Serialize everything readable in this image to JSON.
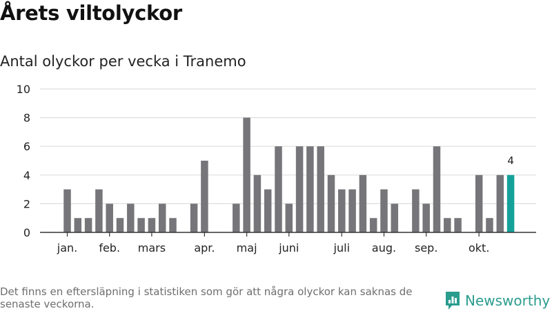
{
  "header": {
    "title": "Årets viltolyckor",
    "subtitle": "Antal olyckor per vecka i Tranemo"
  },
  "chart_data": {
    "type": "bar",
    "title": "Årets viltolyckor",
    "subtitle": "Antal olyckor per vecka i Tranemo",
    "xlabel": "",
    "ylabel": "",
    "ylim": [
      0,
      10
    ],
    "yticks": [
      0,
      2,
      4,
      6,
      8,
      10
    ],
    "grid": true,
    "month_labels": [
      {
        "label": "jan.",
        "week": 1
      },
      {
        "label": "feb.",
        "week": 5
      },
      {
        "label": "mars",
        "week": 9
      },
      {
        "label": "apr.",
        "week": 14
      },
      {
        "label": "maj",
        "week": 18
      },
      {
        "label": "juni",
        "week": 22
      },
      {
        "label": "juli",
        "week": 27
      },
      {
        "label": "aug.",
        "week": 31
      },
      {
        "label": "sep.",
        "week": 35
      },
      {
        "label": "okt.",
        "week": 40
      }
    ],
    "weeks": [
      1,
      2,
      3,
      4,
      5,
      6,
      7,
      8,
      9,
      10,
      11,
      12,
      13,
      14,
      15,
      16,
      17,
      18,
      19,
      20,
      21,
      22,
      23,
      24,
      25,
      26,
      27,
      28,
      29,
      30,
      31,
      32,
      33,
      34,
      35,
      36,
      37,
      38,
      39,
      40,
      41,
      42,
      43
    ],
    "values": [
      3,
      1,
      1,
      3,
      2,
      1,
      2,
      1,
      1,
      2,
      1,
      0,
      2,
      5,
      0,
      0,
      2,
      8,
      4,
      3,
      6,
      2,
      6,
      6,
      6,
      4,
      3,
      3,
      4,
      1,
      3,
      2,
      0,
      3,
      2,
      6,
      1,
      1,
      0,
      4,
      1,
      4,
      4
    ],
    "highlight_index": 42,
    "highlight_label": "4",
    "colors": {
      "bar": "#767579",
      "highlight": "#14a19a",
      "grid": "#dedede",
      "axis": "#333333"
    }
  },
  "footer": {
    "note": "Det finns en eftersläpning i statistiken som gör att några olyckor kan saknas de senaste veckorna.",
    "brand": "Newsworthy",
    "brand_color": "#2a9d8f"
  }
}
